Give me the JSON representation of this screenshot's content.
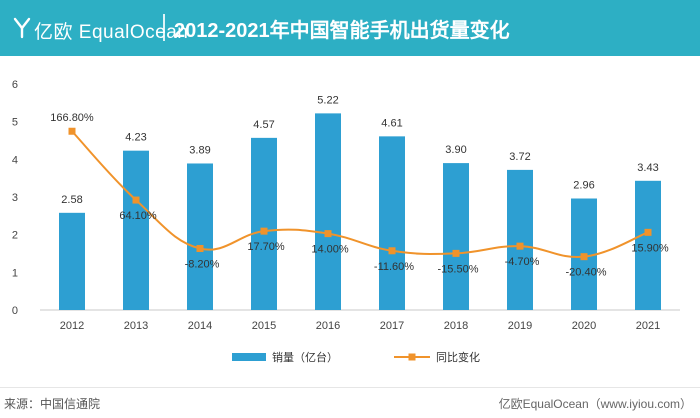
{
  "header": {
    "brand": "亿欧 EqualOcean",
    "title": "2012-2021年中国智能手机出货量变化"
  },
  "colors": {
    "bar": "#2d9fd2",
    "line": "#f0932b",
    "header_bg": "#2dafc4"
  },
  "chart_data": {
    "type": "bar",
    "categories": [
      "2012",
      "2013",
      "2014",
      "2015",
      "2016",
      "2017",
      "2018",
      "2019",
      "2020",
      "2021"
    ],
    "series": [
      {
        "name": "销量（亿台）",
        "type": "bar",
        "values": [
          2.58,
          4.23,
          3.89,
          4.57,
          5.22,
          4.61,
          3.9,
          3.72,
          2.96,
          3.43
        ],
        "labels": [
          "2.58",
          "4.23",
          "3.89",
          "4.57",
          "5.22",
          "4.61",
          "3.90",
          "3.72",
          "2.96",
          "3.43"
        ]
      },
      {
        "name": "同比变化",
        "type": "line",
        "values": [
          166.8,
          64.1,
          -8.2,
          17.7,
          14.0,
          -11.6,
          -15.5,
          -4.7,
          -20.4,
          15.9
        ],
        "labels": [
          "166.80%",
          "64.10%",
          "-8.20%",
          "17.70%",
          "14.00%",
          "-11.60%",
          "-15.50%",
          "-4.70%",
          "-20.40%",
          "15.90%"
        ]
      }
    ],
    "ylim": [
      0,
      6
    ],
    "yticks": [
      "0",
      "1",
      "2",
      "3",
      "4",
      "5",
      "6"
    ],
    "line_axis": {
      "hidden": true,
      "range": [
        -100,
        200
      ]
    },
    "legend_position": "bottom-center",
    "grid": false
  },
  "footer": {
    "source": "来源：中国信通院",
    "brand": "亿欧EqualOcean（www.iyiou.com）"
  }
}
